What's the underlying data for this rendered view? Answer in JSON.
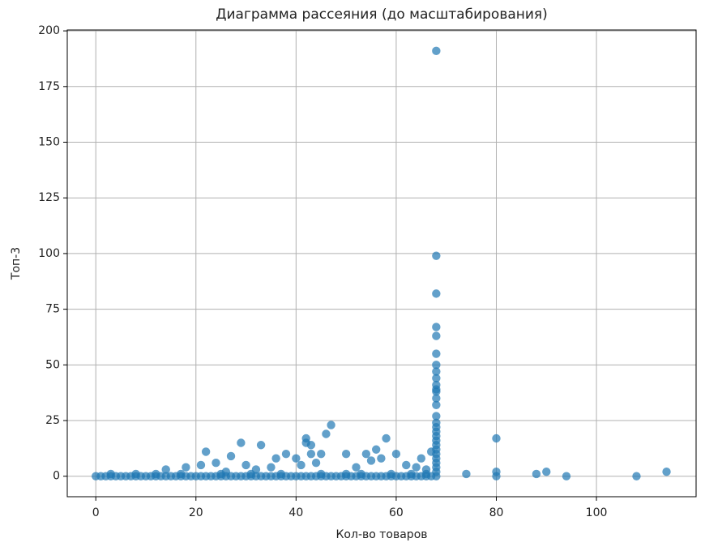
{
  "chart_data": {
    "type": "scatter",
    "title": "Диаграмма рассеяния (до масштабирования)",
    "x_label": "Кол-во товаров",
    "y_label": "Топ-3",
    "color": "#1f77b4",
    "grid": true,
    "xlim": [
      -5.7,
      119.9
    ],
    "ylim": [
      -9.2,
      200.4
    ],
    "xticks": [
      0,
      20,
      40,
      60,
      80,
      100
    ],
    "yticks": [
      0,
      25,
      50,
      75,
      100,
      125,
      150,
      175,
      200
    ],
    "x": [
      0,
      1,
      2,
      3,
      4,
      5,
      6,
      7,
      8,
      9,
      10,
      11,
      12,
      13,
      14,
      15,
      16,
      17,
      18,
      19,
      20,
      21,
      22,
      23,
      24,
      25,
      26,
      27,
      28,
      29,
      30,
      31,
      32,
      33,
      34,
      35,
      36,
      37,
      38,
      39,
      40,
      41,
      42,
      43,
      44,
      45,
      46,
      47,
      48,
      49,
      50,
      51,
      52,
      53,
      54,
      55,
      56,
      57,
      58,
      59,
      60,
      61,
      62,
      63,
      64,
      65,
      66,
      67,
      68,
      3,
      8,
      12,
      17,
      25,
      31,
      37,
      45,
      50,
      53,
      59,
      63,
      66,
      68,
      68,
      68,
      68,
      68,
      68,
      68,
      68,
      68,
      68,
      68,
      68,
      68,
      68,
      68,
      68,
      68,
      68,
      68,
      68,
      68,
      68,
      68,
      68,
      68,
      68,
      68,
      74,
      80,
      80,
      80,
      88,
      90,
      94,
      108,
      114,
      22,
      29,
      33,
      47,
      46,
      42,
      42,
      43,
      58,
      56,
      54,
      50,
      60,
      45,
      43,
      38,
      36,
      67,
      65,
      27,
      24,
      21,
      18,
      14,
      30,
      40,
      41,
      44,
      52,
      55,
      57,
      62,
      64,
      66,
      35,
      32,
      26
    ],
    "y": [
      0,
      0,
      0,
      0,
      0,
      0,
      0,
      0,
      0,
      0,
      0,
      0,
      0,
      0,
      0,
      0,
      0,
      0,
      0,
      0,
      0,
      0,
      0,
      0,
      0,
      0,
      0,
      0,
      0,
      0,
      0,
      0,
      0,
      0,
      0,
      0,
      0,
      0,
      0,
      0,
      0,
      0,
      0,
      0,
      0,
      0,
      0,
      0,
      0,
      0,
      0,
      0,
      0,
      0,
      0,
      0,
      0,
      0,
      0,
      0,
      0,
      0,
      0,
      0,
      0,
      0,
      0,
      0,
      0,
      1,
      1,
      1,
      1,
      1,
      1,
      1,
      1,
      1,
      1,
      1,
      1,
      1,
      191,
      99,
      82,
      67,
      63,
      55,
      50,
      47,
      44,
      41,
      39,
      38,
      35,
      32,
      27,
      24,
      22,
      20,
      18,
      16,
      14,
      12,
      10,
      8,
      6,
      4,
      2,
      1,
      17,
      2,
      0,
      1,
      2,
      0,
      0,
      2,
      11,
      15,
      14,
      23,
      19,
      17,
      15,
      14,
      17,
      12,
      10,
      10,
      10,
      10,
      10,
      10,
      8,
      11,
      8,
      9,
      6,
      5,
      4,
      3,
      5,
      8,
      5,
      6,
      4,
      7,
      8,
      5,
      4,
      3,
      4,
      3,
      2
    ]
  }
}
